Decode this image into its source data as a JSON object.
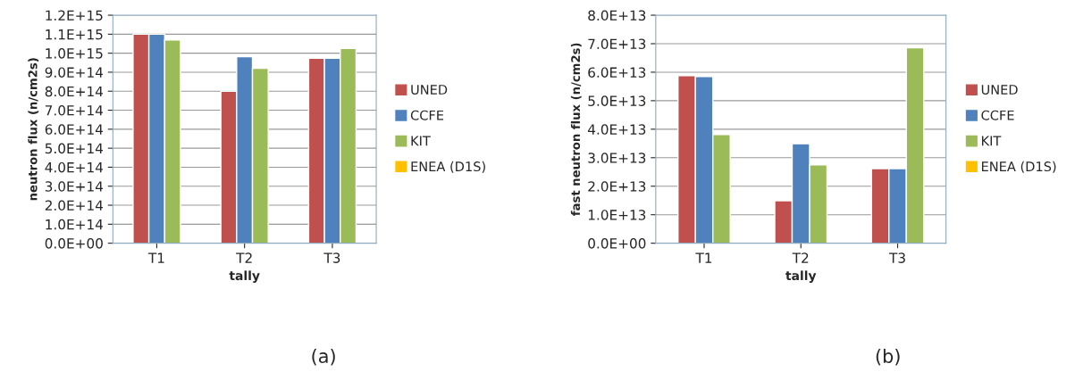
{
  "chart_data": [
    {
      "type": "bar",
      "title": "(a)",
      "xlabel": "tally",
      "ylabel": "neutron flux (n/cm2s)",
      "categories": [
        "T1",
        "T2",
        "T3"
      ],
      "series": [
        {
          "name": "UNED",
          "color": "#c0504d",
          "values": [
            1100000000000000.0,
            800000000000000.0,
            973000000000000.0
          ]
        },
        {
          "name": "CCFE",
          "color": "#4f81bd",
          "values": [
            1100000000000000.0,
            982000000000000.0,
            973000000000000.0
          ]
        },
        {
          "name": "KIT",
          "color": "#9bbb59",
          "values": [
            1070000000000000.0,
            920000000000000.0,
            1025000000000000.0
          ]
        },
        {
          "name": "ENEA (D1S)",
          "color": "#ffc000",
          "values": [
            null,
            null,
            null
          ]
        }
      ],
      "ylim": [
        0,
        1200000000000000.0
      ],
      "yticks": [
        {
          "value": 0,
          "label": "0.0E+00"
        },
        {
          "value": 100000000000000.0,
          "label": "1.0E+14"
        },
        {
          "value": 200000000000000.0,
          "label": "2.0E+14"
        },
        {
          "value": 300000000000000.0,
          "label": "3.0E+14"
        },
        {
          "value": 400000000000000.0,
          "label": "4.0E+14"
        },
        {
          "value": 500000000000000.0,
          "label": "5.0E+14"
        },
        {
          "value": 600000000000000.0,
          "label": "6.0E+14"
        },
        {
          "value": 700000000000000.0,
          "label": "7.0E+14"
        },
        {
          "value": 800000000000000.0,
          "label": "8.0E+14"
        },
        {
          "value": 900000000000000.0,
          "label": "9.0E+14"
        },
        {
          "value": 1000000000000000.0,
          "label": "1.0E+15"
        },
        {
          "value": 1100000000000000.0,
          "label": "1.1E+15"
        },
        {
          "value": 1200000000000000.0,
          "label": "1.2E+15"
        }
      ],
      "grid": "y",
      "legend": "right"
    },
    {
      "type": "bar",
      "title": "(b)",
      "xlabel": "tally",
      "ylabel": "fast neutron flux (n/cm2s)",
      "categories": [
        "T1",
        "T2",
        "T3"
      ],
      "series": [
        {
          "name": "UNED",
          "color": "#c0504d",
          "values": [
            58800000000000.0,
            14900000000000.0,
            26200000000000.0
          ]
        },
        {
          "name": "CCFE",
          "color": "#4f81bd",
          "values": [
            58500000000000.0,
            34900000000000.0,
            26200000000000.0
          ]
        },
        {
          "name": "KIT",
          "color": "#9bbb59",
          "values": [
            38100000000000.0,
            27500000000000.0,
            68600000000000.0
          ]
        },
        {
          "name": "ENEA (D1S)",
          "color": "#ffc000",
          "values": [
            null,
            null,
            null
          ]
        }
      ],
      "ylim": [
        0,
        80000000000000.0
      ],
      "yticks": [
        {
          "value": 0,
          "label": "0.0E+00"
        },
        {
          "value": 10000000000000.0,
          "label": "1.0E+13"
        },
        {
          "value": 20000000000000.0,
          "label": "2.0E+13"
        },
        {
          "value": 30000000000000.0,
          "label": "3.0E+13"
        },
        {
          "value": 40000000000000.0,
          "label": "4.0E+13"
        },
        {
          "value": 50000000000000.0,
          "label": "5.0E+13"
        },
        {
          "value": 60000000000000.0,
          "label": "6.0E+13"
        },
        {
          "value": 70000000000000.0,
          "label": "7.0E+13"
        },
        {
          "value": 80000000000000.0,
          "label": "8.0E+13"
        }
      ],
      "grid": "y",
      "legend": "right"
    }
  ]
}
